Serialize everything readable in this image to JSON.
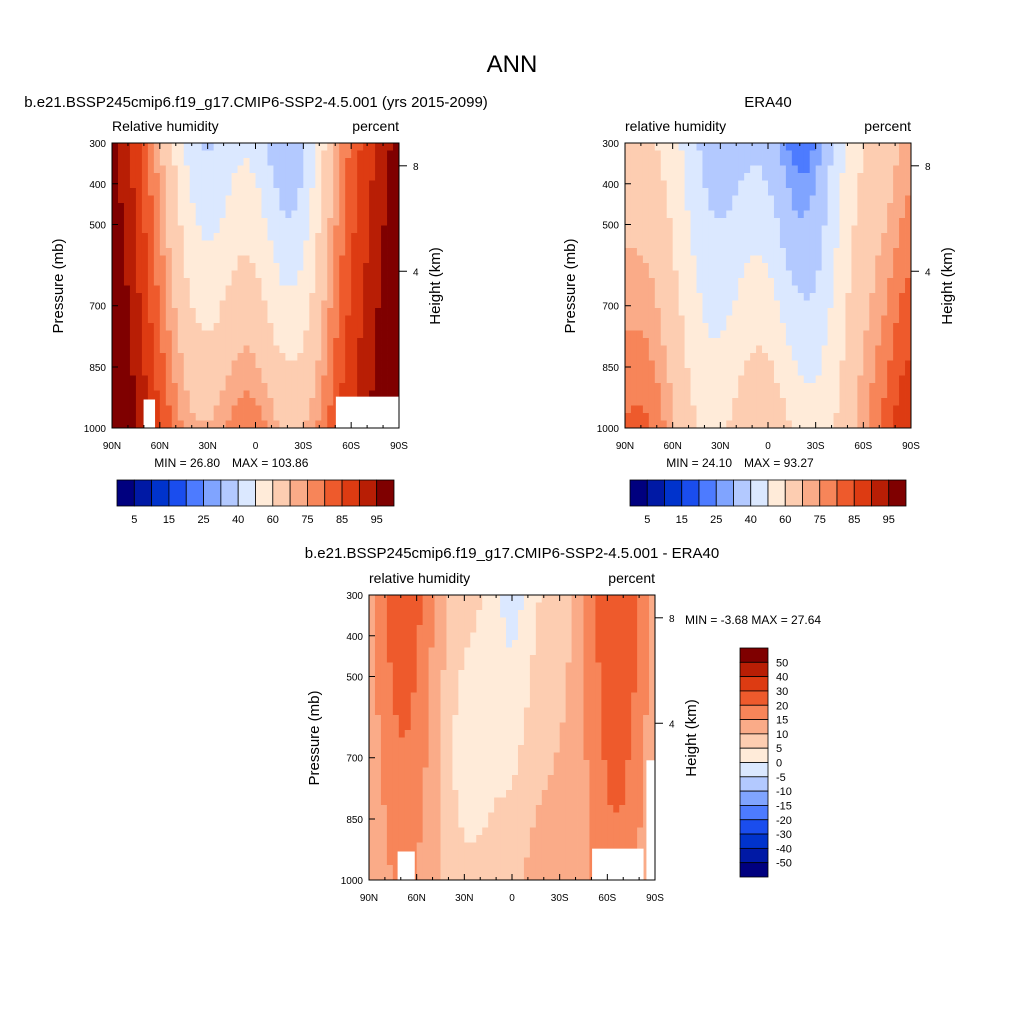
{
  "main_title": "ANN",
  "colors": {
    "rh_scale": [
      "#00007f",
      "#0019a5",
      "#0033cc",
      "#1a4dee",
      "#4d7bff",
      "#80a4ff",
      "#b3c9ff",
      "#dbe8ff",
      "#ffebd9",
      "#fdcdb1",
      "#faab88",
      "#f78559",
      "#ee5a2c",
      "#dd3b12",
      "#b81e05",
      "#7f0000"
    ],
    "diff_scale": [
      "#00007f",
      "#0019a5",
      "#0033cc",
      "#1a4dee",
      "#4d7bff",
      "#80a4ff",
      "#b3c9ff",
      "#dbe8ff",
      "#ffebd9",
      "#fdcdb1",
      "#faab88",
      "#f78559",
      "#ee5a2c",
      "#dd3b12",
      "#b81e05",
      "#7f0000"
    ]
  },
  "chart_data": [
    {
      "type": "heatmap",
      "panel_id": "model",
      "title": "b.e21.BSSP245cmip6.f19_g17.CMIP6-SSP2-4.5.001 (yrs 2015-2099)",
      "left_label": "Relative humidity",
      "right_label": "percent",
      "ylabel": "Pressure (mb)",
      "ylabel_right": "Height (km)",
      "x_ticks": [
        "90N",
        "60N",
        "30N",
        "0",
        "30S",
        "60S",
        "90S"
      ],
      "y_ticks": [
        "300",
        "400",
        "500",
        "700",
        "850",
        "1000"
      ],
      "height_ticks": [
        "8",
        "4"
      ],
      "min_label": "MIN =  26.80",
      "max_label": "MAX = 103.86",
      "min": 26.8,
      "max": 103.86,
      "colorbar_labels": [
        "5",
        "15",
        "25",
        "40",
        "60",
        "75",
        "85",
        "95"
      ]
    },
    {
      "type": "heatmap",
      "panel_id": "obs",
      "title": "ERA40",
      "left_label": "relative humidity",
      "right_label": "percent",
      "ylabel": "Pressure (mb)",
      "ylabel_right": "Height (km)",
      "x_ticks": [
        "90N",
        "60N",
        "30N",
        "0",
        "30S",
        "60S",
        "90S"
      ],
      "y_ticks": [
        "300",
        "400",
        "500",
        "700",
        "850",
        "1000"
      ],
      "height_ticks": [
        "8",
        "4"
      ],
      "min_label": "MIN =  24.10",
      "max_label": "MAX =  93.27",
      "min": 24.1,
      "max": 93.27,
      "colorbar_labels": [
        "5",
        "15",
        "25",
        "40",
        "60",
        "75",
        "85",
        "95"
      ]
    },
    {
      "type": "heatmap",
      "panel_id": "diff",
      "title": "b.e21.BSSP245cmip6.f19_g17.CMIP6-SSP2-4.5.001 - ERA40",
      "left_label": "relative humidity",
      "right_label": "percent",
      "ylabel": "Pressure (mb)",
      "ylabel_right": "Height (km)",
      "x_ticks": [
        "90N",
        "60N",
        "30N",
        "0",
        "30S",
        "60S",
        "90S"
      ],
      "y_ticks": [
        "300",
        "400",
        "500",
        "700",
        "850",
        "1000"
      ],
      "height_ticks": [
        "8",
        "4"
      ],
      "minmax_label": "MIN =  -3.68  MAX =  27.64",
      "min": -3.68,
      "max": 27.64,
      "colorbar_labels": [
        "50",
        "40",
        "30",
        "20",
        "15",
        "10",
        "5",
        "0",
        "-5",
        "-10",
        "-15",
        "-20",
        "-30",
        "-40",
        "-50"
      ]
    }
  ]
}
